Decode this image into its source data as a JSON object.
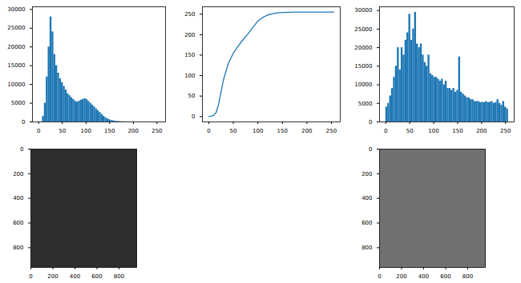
{
  "chart_data": [
    {
      "type": "histogram",
      "color": "#1f77b4",
      "bins": [
        0,
        4,
        8,
        12,
        16,
        20,
        24,
        28,
        32,
        36,
        40,
        44,
        48,
        52,
        56,
        60,
        64,
        68,
        72,
        76,
        80,
        84,
        88,
        92,
        96,
        100,
        104,
        108,
        112,
        116,
        120,
        124,
        128,
        132,
        136,
        140,
        144,
        148,
        152,
        156,
        160,
        164,
        168,
        172,
        176,
        180,
        184,
        188,
        192,
        196,
        200,
        204,
        208,
        212,
        216,
        220,
        224,
        228,
        232,
        236,
        240,
        244,
        248,
        252,
        256
      ],
      "counts": [
        0,
        0,
        1500,
        5000,
        12000,
        20000,
        28000,
        24000,
        18000,
        15000,
        13000,
        11500,
        10500,
        9500,
        8500,
        7500,
        7000,
        6500,
        6000,
        5500,
        5300,
        5500,
        5800,
        6000,
        6200,
        6000,
        5500,
        5000,
        4500,
        4000,
        3500,
        3000,
        2500,
        2000,
        1500,
        1100,
        800,
        600,
        400,
        300,
        200,
        150,
        100,
        80,
        60,
        40,
        20,
        10,
        5,
        0,
        0,
        0,
        0,
        0,
        0,
        0,
        0,
        0,
        0,
        0,
        0,
        0,
        0,
        0
      ],
      "xlim": [
        -13,
        268
      ],
      "xticks": [
        0,
        50,
        100,
        150,
        200,
        250
      ],
      "ylim": [
        0,
        30700
      ],
      "yticks": [
        0,
        5000,
        10000,
        15000,
        20000,
        25000,
        30000
      ]
    },
    {
      "type": "line",
      "color": "#1f77b4",
      "x": [
        0,
        10,
        15,
        20,
        25,
        30,
        35,
        40,
        50,
        60,
        70,
        80,
        90,
        100,
        110,
        120,
        130,
        140,
        150,
        175,
        200,
        255
      ],
      "values": [
        0,
        3,
        10,
        30,
        60,
        90,
        110,
        130,
        155,
        172,
        188,
        202,
        218,
        233,
        242,
        248,
        251,
        253,
        254,
        255,
        255,
        255
      ],
      "xlim": [
        -13,
        268
      ],
      "xticks": [
        0,
        50,
        100,
        150,
        200,
        250
      ],
      "ylim": [
        -13,
        268
      ],
      "yticks": [
        0,
        50,
        100,
        150,
        200,
        250
      ]
    },
    {
      "type": "histogram",
      "color": "#1f77b4",
      "bins": [
        0,
        4,
        8,
        12,
        16,
        20,
        24,
        28,
        32,
        36,
        40,
        44,
        48,
        52,
        56,
        60,
        64,
        68,
        72,
        76,
        80,
        84,
        88,
        92,
        96,
        100,
        104,
        108,
        112,
        116,
        120,
        124,
        128,
        132,
        136,
        140,
        144,
        148,
        152,
        156,
        160,
        164,
        168,
        172,
        176,
        180,
        184,
        188,
        192,
        196,
        200,
        204,
        208,
        212,
        216,
        220,
        224,
        228,
        232,
        236,
        240,
        244,
        248,
        252,
        256
      ],
      "counts": [
        4000,
        5000,
        7000,
        9000,
        12000,
        15000,
        20000,
        14000,
        20000,
        18000,
        22000,
        24000,
        29000,
        22000,
        25000,
        29500,
        21000,
        20000,
        21000,
        18000,
        16000,
        15000,
        18000,
        13000,
        12500,
        12000,
        12000,
        11500,
        11000,
        11500,
        10000,
        11000,
        9000,
        9000,
        8500,
        9000,
        8000,
        8500,
        17500,
        8000,
        7500,
        7000,
        6500,
        6500,
        6000,
        6000,
        5500,
        5500,
        5500,
        5200,
        5300,
        5200,
        5500,
        5200,
        5300,
        5500,
        5000,
        5200,
        6000,
        5000,
        4500,
        5500,
        4000,
        3500
      ],
      "xlim": [
        -13,
        268
      ],
      "xticks": [
        0,
        50,
        100,
        150,
        200,
        250
      ],
      "ylim": [
        0,
        31000
      ],
      "yticks": [
        0,
        5000,
        10000,
        15000,
        20000,
        25000,
        30000
      ]
    },
    {
      "type": "image",
      "color": "#2e2e2e",
      "xlim": [
        0,
        960
      ],
      "xticks": [
        0,
        200,
        400,
        600,
        800
      ],
      "ylim": [
        960,
        0
      ],
      "yticks": [
        0,
        200,
        400,
        600,
        800
      ]
    },
    {
      "type": "image",
      "color": "#707070",
      "xlim": [
        0,
        960
      ],
      "xticks": [
        0,
        200,
        400,
        600,
        800
      ],
      "ylim": [
        960,
        0
      ],
      "yticks": [
        0,
        200,
        400,
        600,
        800
      ]
    }
  ]
}
